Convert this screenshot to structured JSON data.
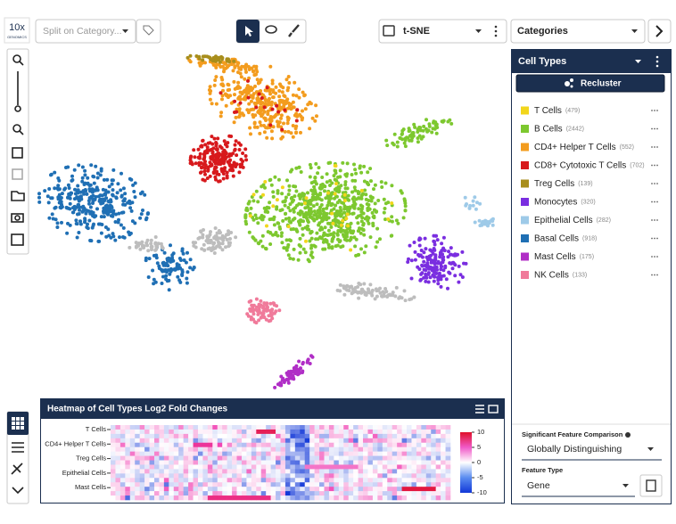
{
  "logo": {
    "line1": "10x",
    "line2": "GENOMICS"
  },
  "toolbar": {
    "split_placeholder": "Split on Category...",
    "projection": "t-SNE",
    "category_select": "Categories"
  },
  "panel": {
    "title": "Cell Types",
    "recluster": "Recluster",
    "items": [
      {
        "label": "T Cells",
        "count": "(479)",
        "color": "#f2d61c"
      },
      {
        "label": "B Cells",
        "count": "(2442)",
        "color": "#7dc82f"
      },
      {
        "label": "CD4+ Helper T Cells",
        "count": "(552)",
        "color": "#f39c1e"
      },
      {
        "label": "CD8+ Cytotoxic T Cells",
        "count": "(702)",
        "color": "#d7191c"
      },
      {
        "label": "Treg Cells",
        "count": "(139)",
        "color": "#a88e1c"
      },
      {
        "label": "Monocytes",
        "count": "(320)",
        "color": "#7a2ee0"
      },
      {
        "label": "Epithelial Cells",
        "count": "(282)",
        "color": "#9ecae8"
      },
      {
        "label": "Basal Cells",
        "count": "(918)",
        "color": "#1f6fb4"
      },
      {
        "label": "Mast Cells",
        "count": "(175)",
        "color": "#b02ec6"
      },
      {
        "label": "NK Cells",
        "count": "(133)",
        "color": "#f07a9a"
      }
    ],
    "feature_comparison": {
      "label": "Significant Feature Comparison",
      "value": "Globally Distinguishing"
    },
    "feature_type": {
      "label": "Feature Type",
      "value": "Gene"
    }
  },
  "heatmap": {
    "title": "Heatmap of Cell Types Log2 Fold Changes",
    "row_labels": [
      "T Cells",
      "CD4+ Helper T Cells",
      "Treg Cells",
      "Epithelial Cells",
      "Mast Cells"
    ],
    "colorbar_ticks": [
      10,
      5,
      0,
      -5,
      -10
    ]
  }
}
